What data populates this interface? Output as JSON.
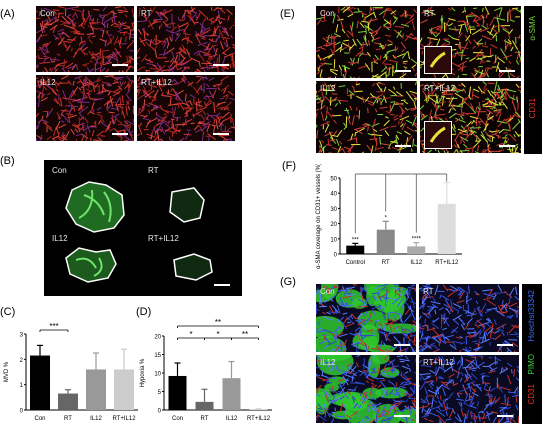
{
  "panels": {
    "A": {
      "label": "(A)",
      "tiles": [
        {
          "label": "Con"
        },
        {
          "label": "RT"
        },
        {
          "label": "IL12"
        },
        {
          "label": "RT+IL12"
        }
      ]
    },
    "B": {
      "label": "(B)",
      "tiles": [
        {
          "label": "Con"
        },
        {
          "label": "RT"
        },
        {
          "label": "IL12"
        },
        {
          "label": "RT+IL12"
        }
      ]
    },
    "C": {
      "label": "(C)"
    },
    "D": {
      "label": "(D)"
    },
    "E": {
      "label": "(E)",
      "tiles": [
        {
          "label": "Con"
        },
        {
          "label": "RT"
        },
        {
          "label": "IL12"
        },
        {
          "label": "RT+IL12"
        }
      ],
      "stain_top": "α-SMA",
      "stain_bottom": "CD31",
      "color_top": "#7ad13a",
      "color_bottom": "#e8332b"
    },
    "F": {
      "label": "(F)"
    },
    "G": {
      "label": "(G)",
      "tiles": [
        {
          "label": "Con"
        },
        {
          "label": "RT"
        },
        {
          "label": "IL12"
        },
        {
          "label": "RT+IL12"
        }
      ],
      "stain_a": "CD31",
      "stain_b": "PIMO",
      "stain_c": "Hoechst33342",
      "color_a": "#e8332b",
      "color_b": "#3ccf3a",
      "color_c": "#3a6df0"
    }
  },
  "chart_data": [
    {
      "panel": "C",
      "type": "bar",
      "categories": [
        "Con",
        "RT",
        "IL12",
        "RT+IL12"
      ],
      "values": [
        2.15,
        0.65,
        1.6,
        1.6
      ],
      "errors": [
        0.4,
        0.15,
        0.65,
        0.8
      ],
      "colors": [
        "#000000",
        "#666666",
        "#999999",
        "#cccccc"
      ],
      "ylabel": "MVD %",
      "ylim": [
        0,
        3
      ],
      "yticks": [
        0,
        1,
        2,
        3
      ],
      "significance": [
        {
          "from": 0,
          "to": 1,
          "label": "***"
        }
      ]
    },
    {
      "panel": "D",
      "type": "bar",
      "categories": [
        "Con",
        "RT",
        "IL12",
        "RT+IL12"
      ],
      "values": [
        9.2,
        2.2,
        8.6,
        0.2
      ],
      "errors": [
        3.5,
        3.4,
        4.5,
        0.1
      ],
      "colors": [
        "#000000",
        "#666666",
        "#999999",
        "#cccccc"
      ],
      "ylabel": "Hypoxia %",
      "ylim": [
        0,
        20
      ],
      "yticks": [
        0,
        5,
        10,
        15,
        20
      ],
      "significance": [
        {
          "from": 0,
          "to": 3,
          "label": "**"
        },
        {
          "from": 0,
          "to": 1,
          "label": "*"
        },
        {
          "from": 1,
          "to": 2,
          "label": "*"
        },
        {
          "from": 2,
          "to": 3,
          "label": "**"
        }
      ]
    },
    {
      "panel": "F",
      "type": "bar",
      "categories": [
        "Control",
        "RT",
        "IL12",
        "RT+IL12"
      ],
      "values": [
        5.5,
        16,
        5,
        33
      ],
      "errors": [
        1.5,
        5.5,
        2.5,
        14
      ],
      "colors": [
        "#000000",
        "#888888",
        "#aaaaaa",
        "#dddddd"
      ],
      "ylabel": "α-SMA coverage on CD31+ vessels (%)",
      "ylim": [
        0,
        50
      ],
      "yticks": [
        0,
        10,
        20,
        30,
        40,
        50
      ],
      "above_bar_labels": [
        "***",
        "*",
        "****",
        ""
      ]
    }
  ]
}
